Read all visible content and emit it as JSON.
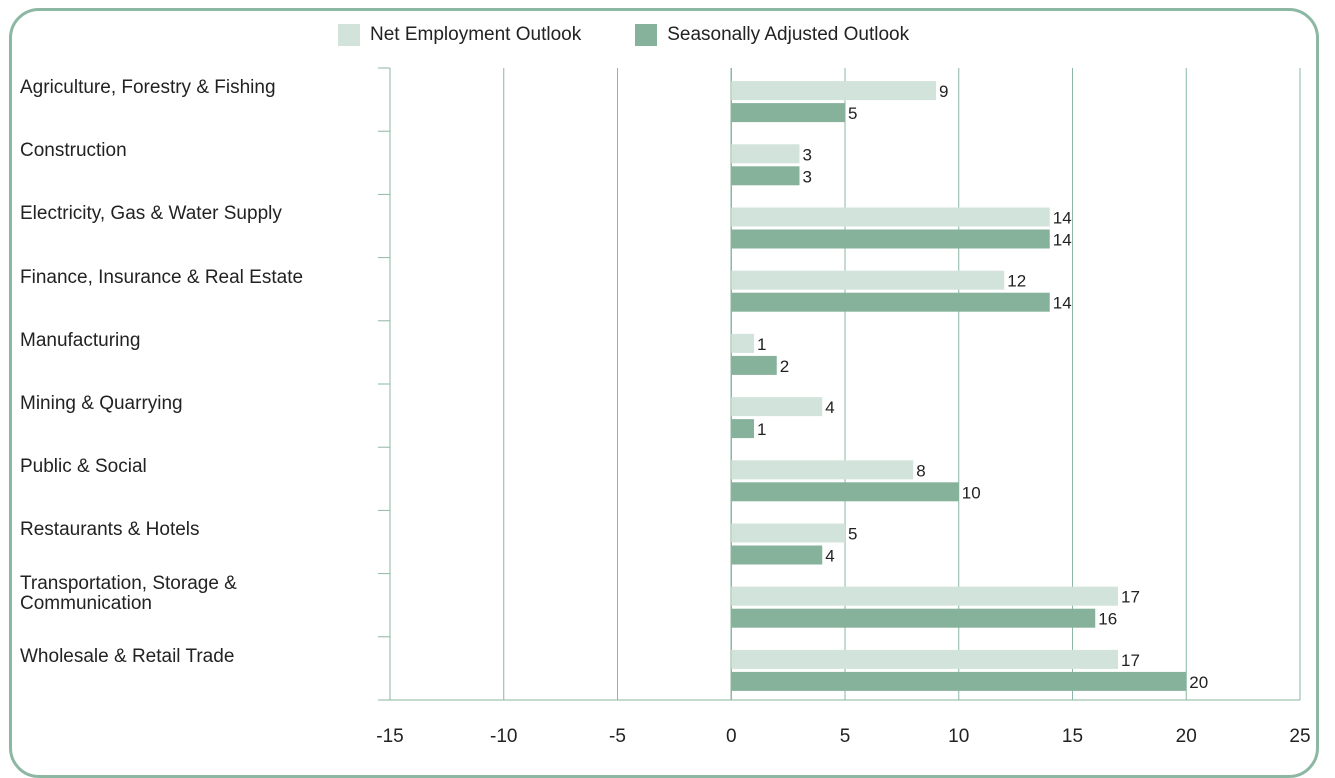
{
  "chart_data": {
    "type": "bar",
    "orientation": "horizontal",
    "categories": [
      "Agriculture, Forestry & Fishing",
      "Construction",
      "Electricity, Gas & Water Supply",
      "Finance, Insurance & Real Estate",
      "Manufacturing",
      "Mining & Quarrying",
      "Public & Social",
      "Restaurants & Hotels",
      "Transportation, Storage & Communication",
      "Wholesale & Retail Trade"
    ],
    "series": [
      {
        "name": "Net Employment Outlook",
        "color": "#d1e3da",
        "values": [
          9,
          3,
          14,
          12,
          1,
          4,
          8,
          5,
          17,
          17
        ]
      },
      {
        "name": "Seasonally Adjusted Outlook",
        "color": "#86b29c",
        "values": [
          5,
          3,
          14,
          14,
          2,
          1,
          10,
          4,
          16,
          20
        ]
      }
    ],
    "xlim": [
      -15,
      25
    ],
    "xticks": [
      -15,
      -10,
      -5,
      0,
      5,
      10,
      15,
      20,
      25
    ],
    "grid": true,
    "legend": "top-center"
  },
  "legend": {
    "net_label": "Net Employment Outlook",
    "seasonal_label": "Seasonally Adjusted Outlook"
  },
  "colors": {
    "frame": "#8cb7a2",
    "grid": "#8cb7a2"
  }
}
